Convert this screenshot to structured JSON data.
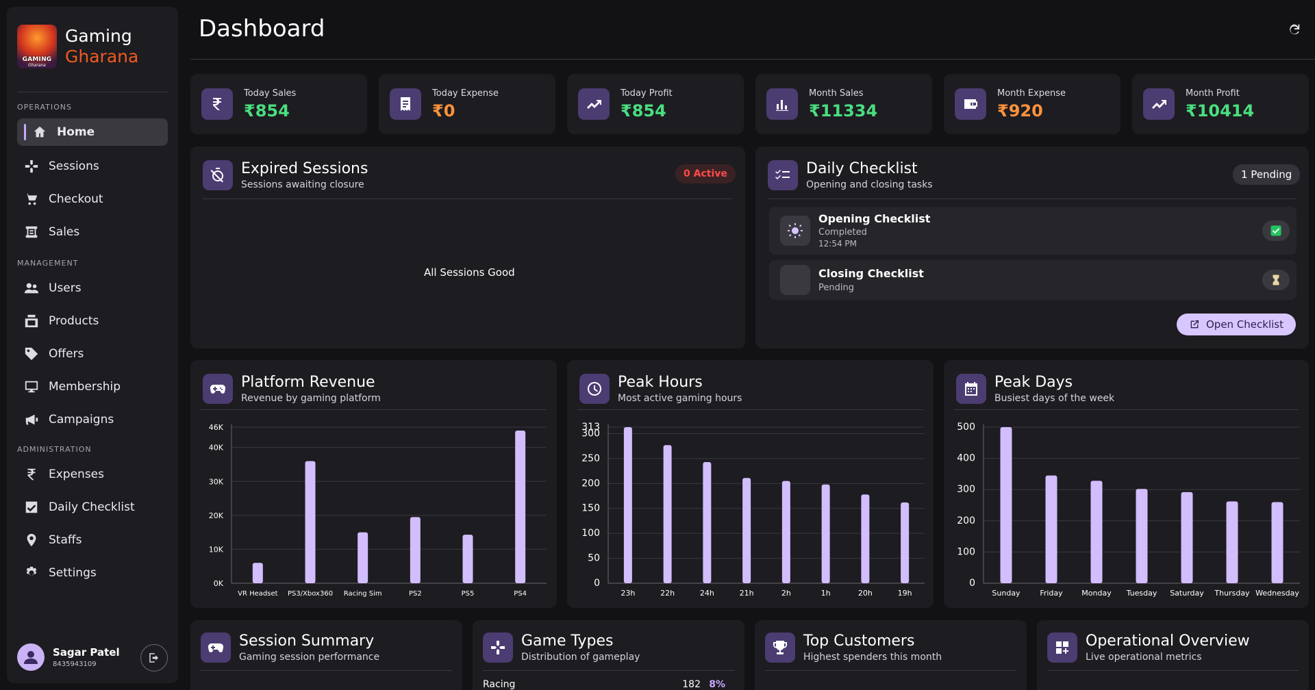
{
  "brand": {
    "line1": "Gaming",
    "line2": "Gharana",
    "logo_text": "GAMING",
    "logo_sub": "Gharana"
  },
  "sidebar": {
    "sections": [
      {
        "label": "OPERATIONS"
      },
      {
        "label": "MANAGEMENT"
      },
      {
        "label": "ADMINISTRATION"
      }
    ],
    "items": [
      {
        "label": "Home",
        "icon": "home-icon",
        "active": true
      },
      {
        "label": "Sessions",
        "icon": "gamepad-icon"
      },
      {
        "label": "Checkout",
        "icon": "cart-icon"
      },
      {
        "label": "Sales",
        "icon": "receipt-icon"
      },
      {
        "label": "Users",
        "icon": "users-icon"
      },
      {
        "label": "Products",
        "icon": "products-icon"
      },
      {
        "label": "Offers",
        "icon": "tag-icon"
      },
      {
        "label": "Membership",
        "icon": "membership-icon"
      },
      {
        "label": "Campaigns",
        "icon": "megaphone-icon"
      },
      {
        "label": "Expenses",
        "icon": "rupee-icon"
      },
      {
        "label": "Daily Checklist",
        "icon": "checkbox-icon"
      },
      {
        "label": "Staffs",
        "icon": "staff-icon"
      },
      {
        "label": "Settings",
        "icon": "gear-icon"
      }
    ]
  },
  "user": {
    "name": "Sagar Patel",
    "phone": "8435943109"
  },
  "header": {
    "title": "Dashboard"
  },
  "stats": [
    {
      "label": "Today Sales",
      "value": "₹854",
      "color": "#4ade80",
      "icon": "rupee-icon"
    },
    {
      "label": "Today Expense",
      "value": "₹0",
      "color": "#fb923c",
      "icon": "receipt-icon"
    },
    {
      "label": "Today Profit",
      "value": "₹854",
      "color": "#4ade80",
      "icon": "trend-up-icon"
    },
    {
      "label": "Month Sales",
      "value": "₹11334",
      "color": "#4ade80",
      "icon": "bar-chart-icon"
    },
    {
      "label": "Month Expense",
      "value": "₹920",
      "color": "#fb923c",
      "icon": "wallet-icon"
    },
    {
      "label": "Month Profit",
      "value": "₹10414",
      "color": "#4ade80",
      "icon": "trend-up-icon"
    }
  ],
  "expired_sessions": {
    "title": "Expired Sessions",
    "subtitle": "Sessions awaiting closure",
    "badge": "0 Active",
    "empty_message": "All Sessions Good"
  },
  "daily_checklist": {
    "title": "Daily Checklist",
    "subtitle": "Opening and closing tasks",
    "badge": "1 Pending",
    "items": [
      {
        "title": "Opening Checklist",
        "status": "Completed",
        "time": "12:54 PM"
      },
      {
        "title": "Closing Checklist",
        "status": "Pending",
        "time": ""
      }
    ],
    "button": "Open Checklist"
  },
  "charts": {
    "platform_revenue": {
      "title": "Platform Revenue",
      "subtitle": "Revenue by gaming platform"
    },
    "peak_hours": {
      "title": "Peak Hours",
      "subtitle": "Most active gaming hours"
    },
    "peak_days": {
      "title": "Peak Days",
      "subtitle": "Busiest days of the week"
    }
  },
  "chart_data": [
    {
      "type": "bar",
      "categories": [
        "VR Headset",
        "PS3/Xbox360",
        "Racing Sim",
        "PS2",
        "PS5",
        "PS4"
      ],
      "values": [
        6000,
        36000,
        15000,
        19500,
        14300,
        45000
      ],
      "ylim": [
        0,
        46000
      ],
      "ytick_labels": [
        "0K",
        "10K",
        "20K",
        "30K",
        "40K",
        "46K"
      ],
      "yticks": [
        0,
        10000,
        20000,
        30000,
        40000,
        46000
      ],
      "color": "#d2bdfd",
      "grid": true
    },
    {
      "type": "bar",
      "categories": [
        "23h",
        "22h",
        "24h",
        "21h",
        "2h",
        "1h",
        "20h",
        "19h"
      ],
      "values": [
        313,
        277,
        243,
        211,
        205,
        198,
        178,
        162
      ],
      "ylim": [
        0,
        313
      ],
      "yticks": [
        0,
        50,
        100,
        150,
        200,
        250,
        300,
        313
      ],
      "ytick_labels": [
        "0",
        "50",
        "100",
        "150",
        "200",
        "250",
        "300",
        "313"
      ],
      "color": "#d2bdfd",
      "grid": true
    },
    {
      "type": "bar",
      "categories": [
        "Sunday",
        "Friday",
        "Monday",
        "Tuesday",
        "Saturday",
        "Thursday",
        "Wednesday"
      ],
      "values": [
        500,
        345,
        328,
        302,
        292,
        262,
        260
      ],
      "ylim": [
        0,
        500
      ],
      "yticks": [
        0,
        100,
        200,
        300,
        400,
        500
      ],
      "ytick_labels": [
        "0",
        "100",
        "200",
        "300",
        "400",
        "500"
      ],
      "color": "#d2bdfd",
      "grid": true
    }
  ],
  "bottom_panels": [
    {
      "title": "Session Summary",
      "subtitle": "Gaming session performance",
      "icon": "gamepad-icon"
    },
    {
      "title": "Game Types",
      "subtitle": "Distribution of gameplay",
      "icon": "joystick-icon"
    },
    {
      "title": "Top Customers",
      "subtitle": "Highest spenders this month",
      "icon": "trophy-icon"
    },
    {
      "title": "Operational Overview",
      "subtitle": "Live operational metrics",
      "icon": "dashboard-icon"
    }
  ],
  "game_types_preview": {
    "label": "Racing",
    "value": "182",
    "percent": "8%"
  }
}
